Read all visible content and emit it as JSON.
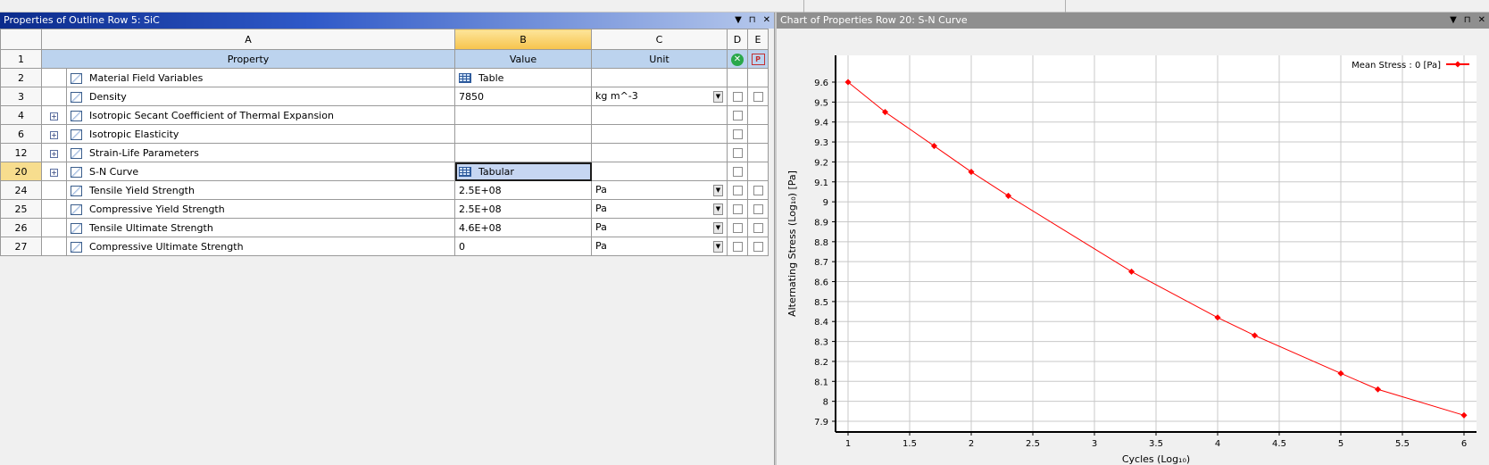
{
  "left_panel": {
    "title": "Properties of Outline Row 5: SiC",
    "controls": [
      "▼",
      "⊓",
      "✕"
    ]
  },
  "table": {
    "columns": [
      "A",
      "B",
      "C",
      "D",
      "E"
    ],
    "field_headers": {
      "property": "Property",
      "value": "Value",
      "unit": "Unit"
    },
    "rows": [
      {
        "num": "2",
        "expand": false,
        "property": "Material Field Variables",
        "value": "Table",
        "value_icon": "table-icon",
        "unit": "",
        "unit_dropdown": false,
        "d_check": false,
        "e_check": false
      },
      {
        "num": "3",
        "expand": false,
        "property": "Density",
        "value": "7850",
        "value_icon": "",
        "unit": "kg m^-3",
        "unit_dropdown": true,
        "d_check": true,
        "e_check": true
      },
      {
        "num": "4",
        "expand": true,
        "property": "Isotropic Secant Coefficient of Thermal Expansion",
        "value": "",
        "value_icon": "",
        "unit": "",
        "unit_dropdown": false,
        "d_check": true,
        "e_check": false
      },
      {
        "num": "6",
        "expand": true,
        "property": "Isotropic Elasticity",
        "value": "",
        "value_icon": "",
        "unit": "",
        "unit_dropdown": false,
        "d_check": true,
        "e_check": false
      },
      {
        "num": "12",
        "expand": true,
        "property": "Strain-Life Parameters",
        "value": "",
        "value_icon": "",
        "unit": "",
        "unit_dropdown": false,
        "d_check": true,
        "e_check": false
      },
      {
        "num": "20",
        "expand": true,
        "property": "S-N Curve",
        "value": "Tabular",
        "value_icon": "table-icon",
        "unit": "",
        "unit_dropdown": false,
        "d_check": true,
        "e_check": false,
        "selected": true
      },
      {
        "num": "24",
        "expand": false,
        "property": "Tensile Yield Strength",
        "value": "2.5E+08",
        "value_icon": "",
        "unit": "Pa",
        "unit_dropdown": true,
        "d_check": true,
        "e_check": true
      },
      {
        "num": "25",
        "expand": false,
        "property": "Compressive Yield Strength",
        "value": "2.5E+08",
        "value_icon": "",
        "unit": "Pa",
        "unit_dropdown": true,
        "d_check": true,
        "e_check": true
      },
      {
        "num": "26",
        "expand": false,
        "property": "Tensile Ultimate Strength",
        "value": "4.6E+08",
        "value_icon": "",
        "unit": "Pa",
        "unit_dropdown": true,
        "d_check": true,
        "e_check": true
      },
      {
        "num": "27",
        "expand": false,
        "property": "Compressive Ultimate Strength",
        "value": "0",
        "value_icon": "",
        "unit": "Pa",
        "unit_dropdown": true,
        "d_check": true,
        "e_check": true
      }
    ],
    "header_row_num": "1"
  },
  "right_panel": {
    "title": "Chart of Properties Row 20: S-N Curve",
    "controls": [
      "▼",
      "⊓",
      "✕"
    ]
  },
  "chart_data": {
    "type": "line",
    "xlabel": "Cycles  (Log₁₀)",
    "ylabel": "Alternating Stress  (Log₁₀)  [Pa]",
    "xlim": [
      1,
      6
    ],
    "ylim": [
      7.9,
      9.6
    ],
    "x_ticks": [
      "1",
      "1.5",
      "2",
      "2.5",
      "3",
      "3.5",
      "4",
      "4.5",
      "5",
      "5.5",
      "6"
    ],
    "y_ticks": [
      "7.9",
      "8",
      "8.1",
      "8.2",
      "8.3",
      "8.4",
      "8.5",
      "8.6",
      "8.7",
      "8.8",
      "8.9",
      "9",
      "9.1",
      "9.2",
      "9.3",
      "9.4",
      "9.5",
      "9.6"
    ],
    "grid": true,
    "legend_position": "top-right",
    "series": [
      {
        "name": "Mean Stress : 0 [Pa]",
        "color": "#ff0000",
        "x": [
          1,
          1.301,
          1.699,
          2,
          2.301,
          3.301,
          4,
          4.301,
          5,
          5.301,
          6
        ],
        "y": [
          9.6,
          9.45,
          9.28,
          9.15,
          9.03,
          8.65,
          8.42,
          8.33,
          8.14,
          8.06,
          7.93
        ]
      }
    ]
  }
}
